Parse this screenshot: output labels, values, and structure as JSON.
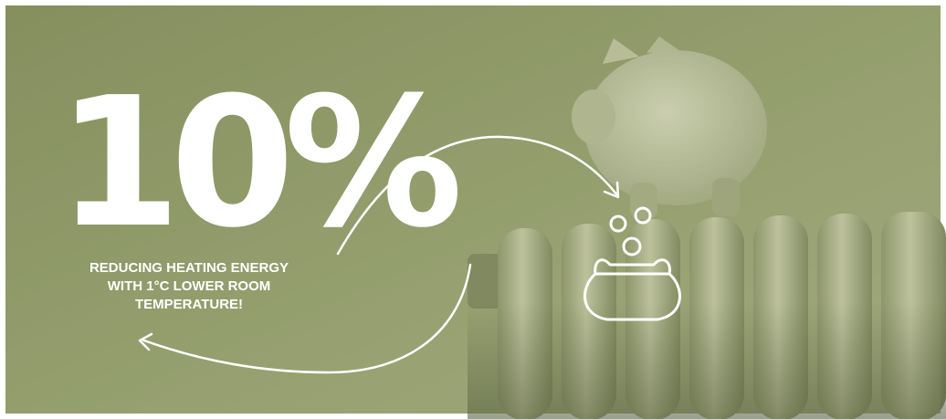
{
  "headline": "10%",
  "caption": [
    "REDUCING HEATING ENERGY",
    "WITH 1°C LOWER ROOM",
    "TEMPERATURE!"
  ]
}
